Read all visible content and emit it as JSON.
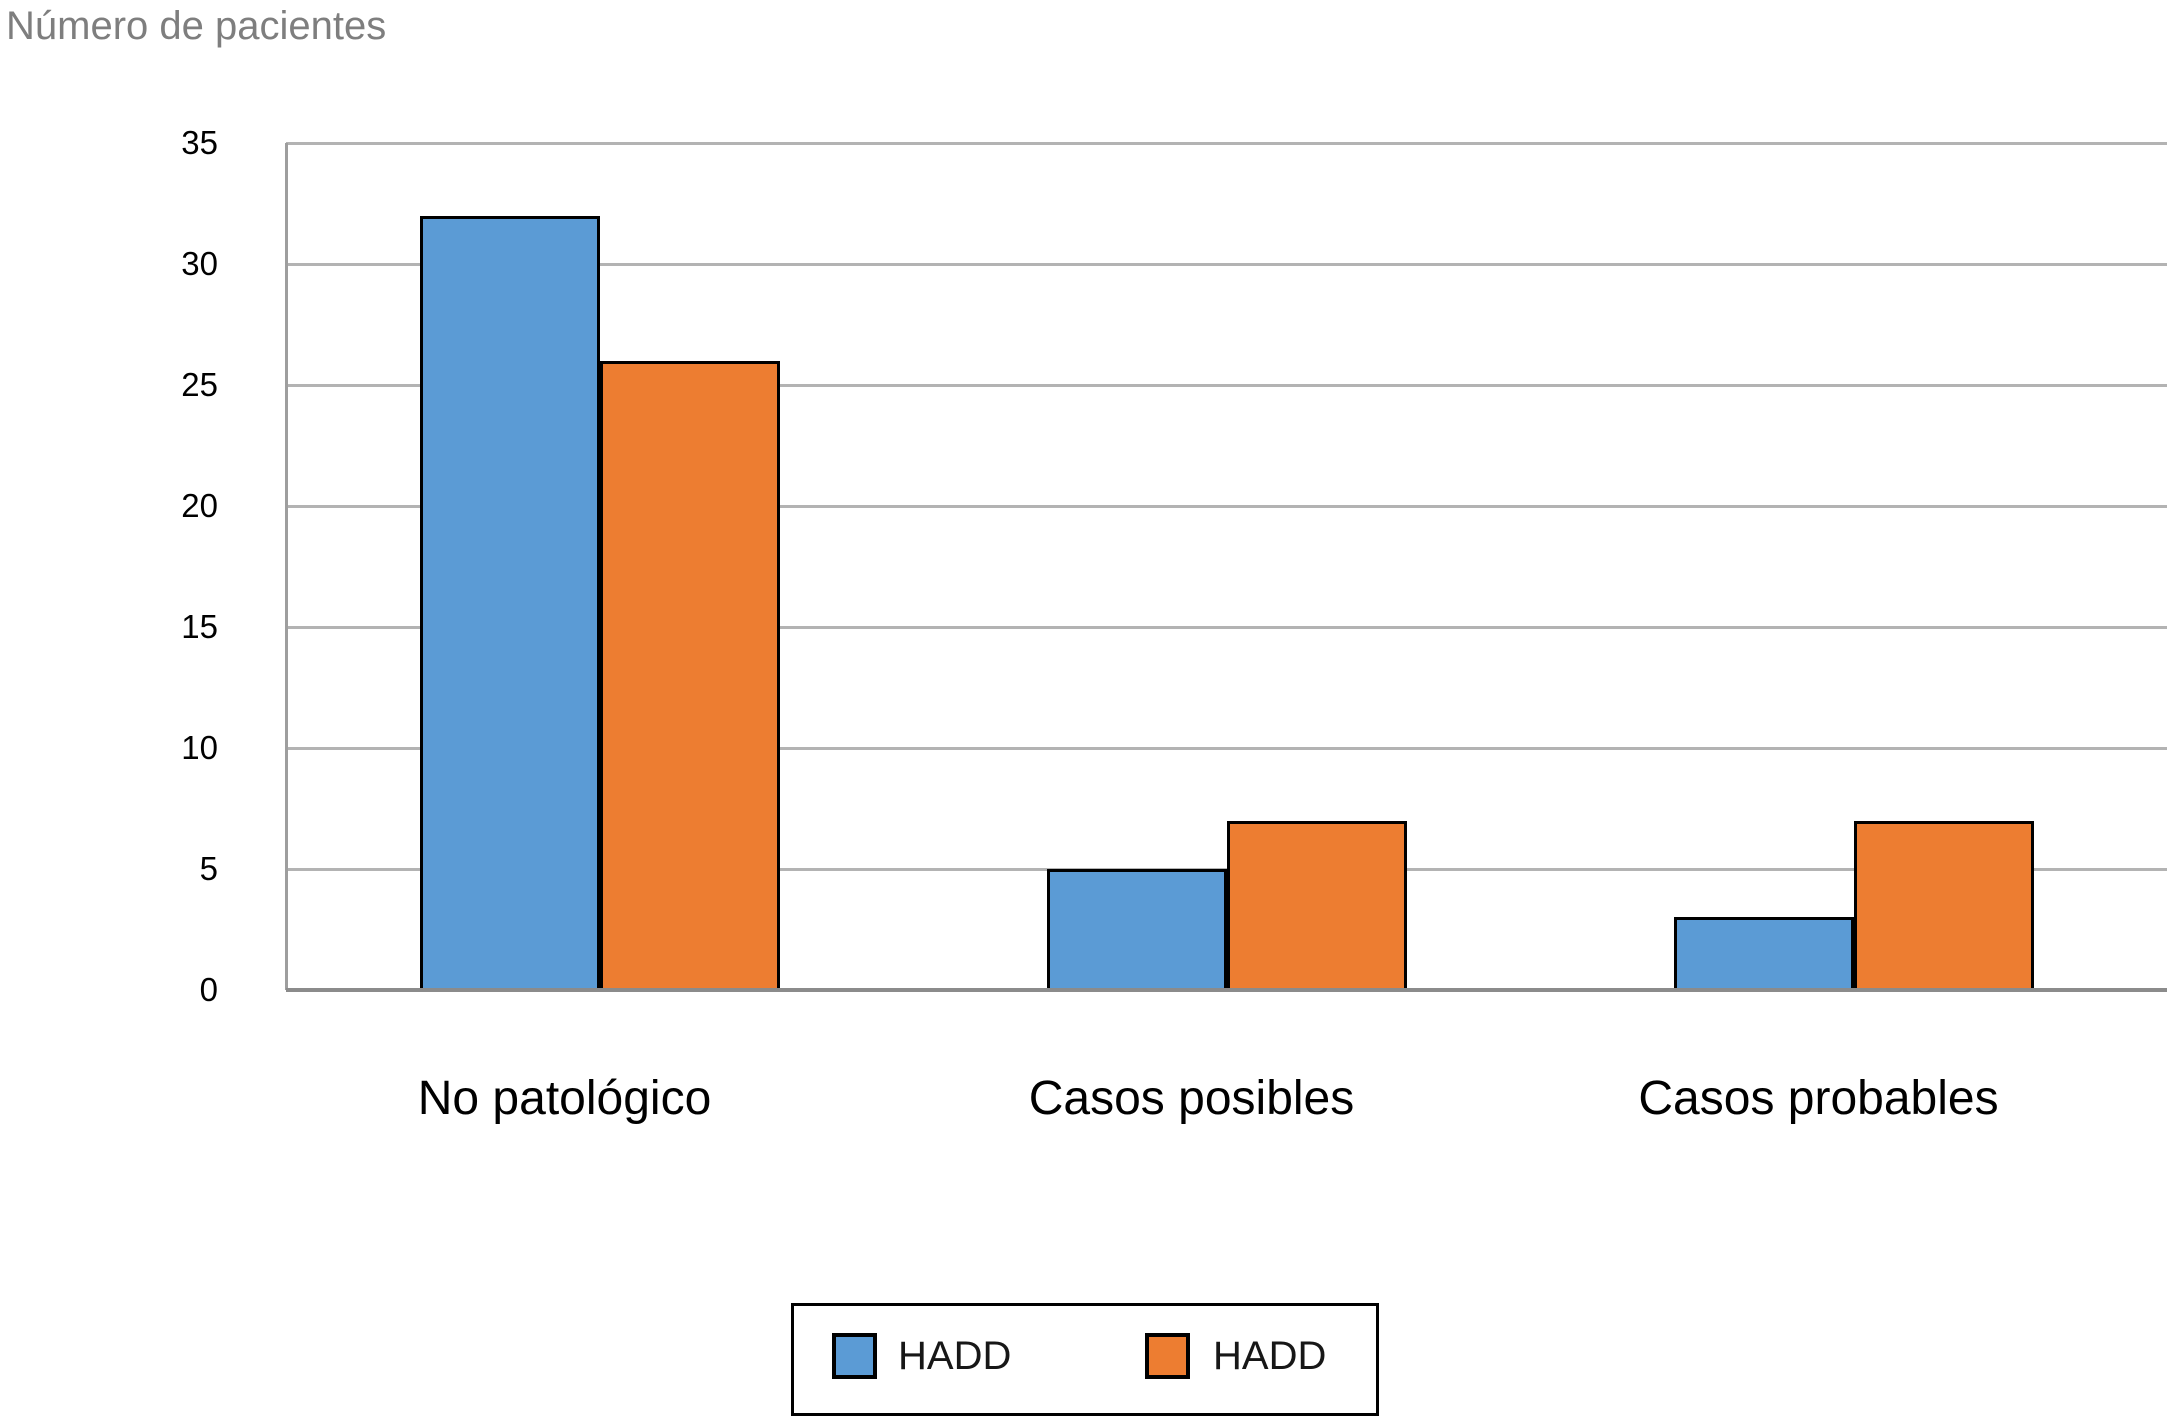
{
  "chart_data": {
    "type": "bar",
    "title": "Número de pacientes",
    "ylabel": "Número de pacientes",
    "xlabel": "",
    "categories": [
      "No patológico",
      "Casos posibles",
      "Casos probables"
    ],
    "series": [
      {
        "name": "HADD",
        "color": "#5B9BD5",
        "values": [
          32,
          5,
          3
        ]
      },
      {
        "name": "HADD",
        "color": "#ED7D31",
        "values": [
          26,
          7,
          7
        ]
      }
    ],
    "yticks": [
      0,
      5,
      10,
      15,
      20,
      25,
      30,
      35
    ],
    "ylim": [
      0,
      35
    ],
    "grid": true,
    "legend_position": "bottom-center",
    "colors": {
      "gridline": "#b3b3b3",
      "axis": "#8b8b8b",
      "bar_border": "#000000",
      "title_text": "#7e7e7e",
      "tick_text": "#000000"
    }
  }
}
